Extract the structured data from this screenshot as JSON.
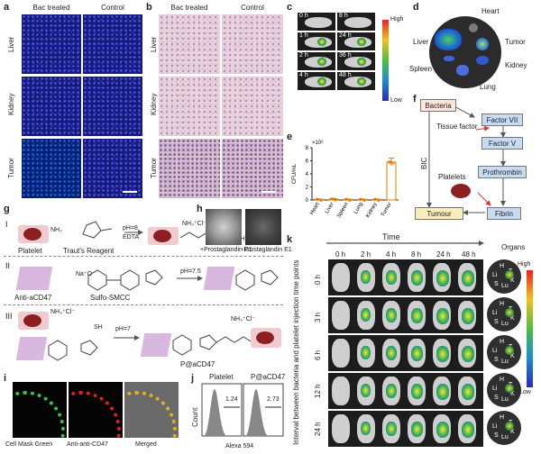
{
  "panels": {
    "a": {
      "label": "a",
      "col1": "Bac treated",
      "col2": "Control",
      "rows": [
        "Liver",
        "Kidney",
        "Tumor"
      ]
    },
    "b": {
      "label": "b",
      "col1": "Bac treated",
      "col2": "Control",
      "rows": [
        "Liver",
        "Kidney",
        "Tumor"
      ]
    },
    "c": {
      "label": "c",
      "times": [
        "0 h",
        "8 h",
        "1 h",
        "24 h",
        "2 h",
        "36 h",
        "4 h",
        "48 h"
      ],
      "high": "High",
      "low": "Low"
    },
    "d": {
      "label": "d",
      "organs": [
        "Heart",
        "Liver",
        "Tumor",
        "Spleen",
        "Kidney",
        "Lung"
      ]
    },
    "e": {
      "label": "e",
      "exponent": "×10⁶"
    },
    "f": {
      "label": "f",
      "nodes": [
        "Bacteria",
        "Factor VII",
        "Tissue factor",
        "Factor V",
        "Prothrombin",
        "Platelets",
        "BIC",
        "Tumour",
        "Fibrin"
      ]
    },
    "g": {
      "label": "g",
      "I": {
        "roman": "I",
        "platelet": "Platelet",
        "reagent": "Traut's Reagent",
        "ph": "pH=8",
        "edta": "EDTA",
        "nh3": "NH₃⁺Cl⁻",
        "sh": "SH",
        "nh2": "NH₂"
      },
      "II": {
        "roman": "II",
        "anti": "Anti-aCD47",
        "smcc": "Sulfo-SMCC",
        "ph": "pH=7.5",
        "na": "Na⁺O⁻"
      },
      "III": {
        "roman": "III",
        "ph": "pH=7",
        "product": "P@aCD47",
        "nh3": "NH₃⁺Cl⁻",
        "sh": "SH"
      }
    },
    "h": {
      "label": "h",
      "cap1": "+Prostaglandin E1",
      "cap2": "-Prostaglandin E1"
    },
    "i": {
      "label": "i",
      "cap1": "Cell Mask Green",
      "cap2": "Anti-anti-CD47",
      "cap3": "Merged"
    },
    "j": {
      "label": "j",
      "title1": "Platelet",
      "title2": "P@aCD47",
      "val1": "1.24",
      "val2": "2.73",
      "ylabel": "Count",
      "xlabel": "Alexa 594"
    },
    "k": {
      "label": "k",
      "time": "Time",
      "cols": [
        "0 h",
        "2 h",
        "4 h",
        "8 h",
        "24 h",
        "48 h"
      ],
      "organs": "Organs",
      "rows": [
        "0 h",
        "3 h",
        "6 h",
        "12 h",
        "24 h"
      ],
      "side": "Interval between bacteria and platelet injection time points",
      "high": "High",
      "low": "Low",
      "organ_letters": [
        "H",
        "T",
        "Li",
        "K",
        "S",
        "Lu"
      ]
    }
  },
  "chart_data": {
    "type": "bar",
    "categories": [
      "Heart",
      "Liver",
      "Spleen",
      "Lung",
      "Kidney",
      "Tumor"
    ],
    "values": [
      0.1,
      0.15,
      0.1,
      0.1,
      0.1,
      5.8
    ],
    "errors": [
      0.05,
      0.1,
      0.05,
      0.05,
      0.05,
      0.6
    ],
    "ylabel": "CFU/mL",
    "yticks": [
      "0",
      "2",
      "4",
      "6",
      "8"
    ],
    "ylim": [
      0,
      8
    ],
    "colors": [
      "#e07b00",
      "#e07b00",
      "#e07b00",
      "#e07b00",
      "#e07b00",
      "#e07b00"
    ]
  }
}
